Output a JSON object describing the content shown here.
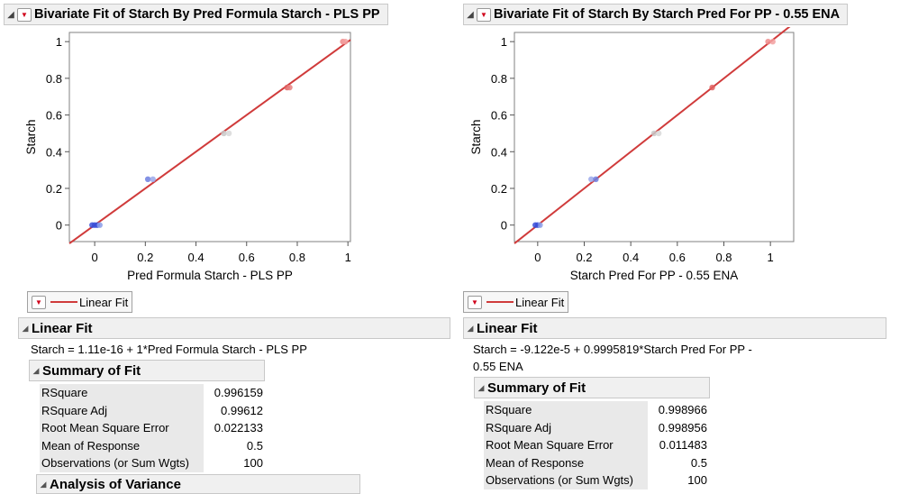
{
  "left": {
    "header_title": "Bivariate Fit of Starch By Pred Formula Starch - PLS PP",
    "legend_label": "Linear Fit",
    "linear_fit_title": "Linear Fit",
    "equation": "Starch = 1.11e-16 + 1*Pred Formula Starch - PLS PP",
    "summary_title": "Summary of Fit",
    "summary_rows": [
      {
        "label": "RSquare",
        "value": "0.996159"
      },
      {
        "label": "RSquare Adj",
        "value": "0.99612"
      },
      {
        "label": "Root Mean Square Error",
        "value": "0.022133"
      },
      {
        "label": "Mean of Response",
        "value": "0.5"
      },
      {
        "label": "Observations (or Sum Wgts)",
        "value": "100"
      }
    ],
    "next_section_title": "Analysis of Variance"
  },
  "right": {
    "header_title": "Bivariate Fit of Starch By Starch Pred For PP - 0.55 ENA",
    "legend_label": "Linear Fit",
    "linear_fit_title": "Linear Fit",
    "equation_line1": "Starch = -9.122e-5 + 0.9995819*Starch Pred For PP -",
    "equation_line2": "0.55 ENA",
    "summary_title": "Summary of Fit",
    "summary_rows": [
      {
        "label": "RSquare",
        "value": "0.998966"
      },
      {
        "label": "RSquare Adj",
        "value": "0.998956"
      },
      {
        "label": "Root Mean Square Error",
        "value": "0.011483"
      },
      {
        "label": "Mean of Response",
        "value": "0.5"
      },
      {
        "label": "Observations (or Sum Wgts)",
        "value": "100"
      }
    ]
  },
  "chart_data": [
    {
      "type": "scatter",
      "title": "Bivariate Fit of Starch By Pred Formula Starch - PLS PP",
      "xlabel": "Pred Formula Starch - PLS PP",
      "ylabel": "Starch",
      "xlim": [
        -0.1,
        1.01
      ],
      "ylim": [
        -0.09,
        1.05
      ],
      "xticks": [
        "0",
        "0.2",
        "0.4",
        "0.6",
        "0.8",
        "1"
      ],
      "yticks": [
        "0",
        "0.2",
        "0.4",
        "0.6",
        "0.8",
        "1"
      ],
      "fit_line": {
        "intercept": 0.0,
        "slope": 1.0,
        "color": "#d03b3b"
      },
      "points": [
        {
          "x": 0.0,
          "y": 0.0,
          "color": "#3a4fd8"
        },
        {
          "x": 0.01,
          "y": 0.0,
          "color": "#3a4fd8"
        },
        {
          "x": 0.02,
          "y": 0.0,
          "color": "#8a9ce8"
        },
        {
          "x": -0.01,
          "y": 0.0,
          "color": "#3a4fd8"
        },
        {
          "x": 0.21,
          "y": 0.25,
          "color": "#6d7fe0"
        },
        {
          "x": 0.23,
          "y": 0.25,
          "color": "#9aa8ea"
        },
        {
          "x": 0.51,
          "y": 0.5,
          "color": "#c8c8c8"
        },
        {
          "x": 0.53,
          "y": 0.5,
          "color": "#d8d8d8"
        },
        {
          "x": 0.76,
          "y": 0.75,
          "color": "#e06060"
        },
        {
          "x": 0.77,
          "y": 0.75,
          "color": "#e88080"
        },
        {
          "x": 0.98,
          "y": 1.0,
          "color": "#ef8a8a"
        },
        {
          "x": 0.99,
          "y": 1.0,
          "color": "#f2a0a0"
        }
      ]
    },
    {
      "type": "scatter",
      "title": "Bivariate Fit of Starch By Starch Pred For PP - 0.55 ENA",
      "xlabel": "Starch Pred For PP - 0.55 ENA",
      "ylabel": "Starch",
      "xlim": [
        -0.1,
        1.1
      ],
      "ylim": [
        -0.09,
        1.05
      ],
      "xticks": [
        "0",
        "0.2",
        "0.4",
        "0.6",
        "0.8",
        "1"
      ],
      "yticks": [
        "0",
        "0.2",
        "0.4",
        "0.6",
        "0.8",
        "1"
      ],
      "fit_line": {
        "intercept": -9.122e-05,
        "slope": 0.9995819,
        "color": "#d03b3b"
      },
      "points": [
        {
          "x": 0.0,
          "y": 0.0,
          "color": "#3a4fd8"
        },
        {
          "x": 0.01,
          "y": 0.0,
          "color": "#8a9ce8"
        },
        {
          "x": -0.01,
          "y": 0.0,
          "color": "#3a4fd8"
        },
        {
          "x": 0.23,
          "y": 0.25,
          "color": "#9aa8ea"
        },
        {
          "x": 0.25,
          "y": 0.25,
          "color": "#6d7fe0"
        },
        {
          "x": 0.5,
          "y": 0.5,
          "color": "#c8c8c8"
        },
        {
          "x": 0.52,
          "y": 0.5,
          "color": "#d8d8d8"
        },
        {
          "x": 0.75,
          "y": 0.75,
          "color": "#e06060"
        },
        {
          "x": 0.99,
          "y": 1.0,
          "color": "#ef8a8a"
        },
        {
          "x": 1.01,
          "y": 1.0,
          "color": "#f2a0a0"
        }
      ]
    }
  ]
}
